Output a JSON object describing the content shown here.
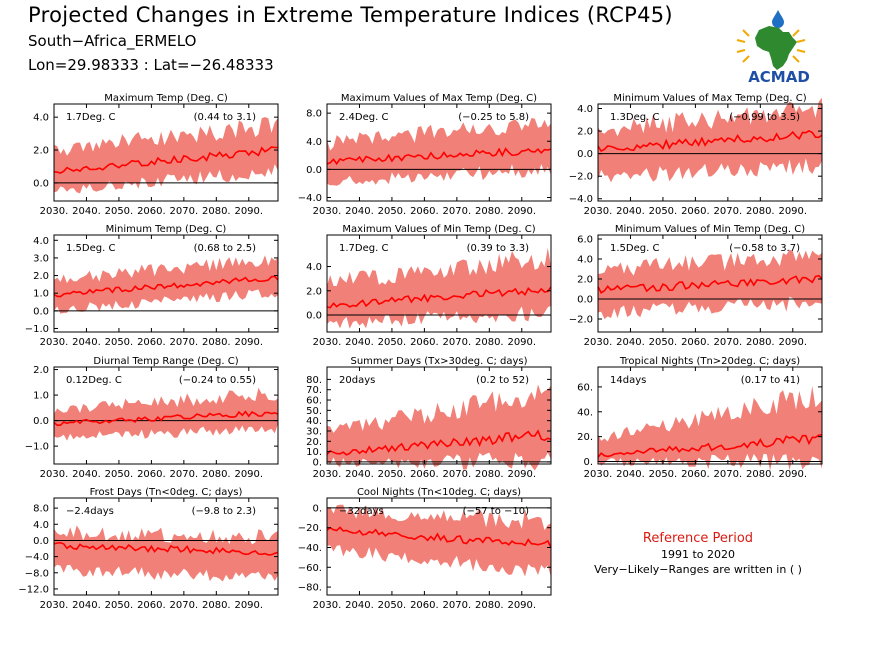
{
  "header": {
    "title": "Projected Changes in Extreme Temperature Indices (RCP45)",
    "location": "South−Africa_ERMELO",
    "coords": "Lon=29.98333 : Lat=−26.48333"
  },
  "logo": {
    "text": "ACMAD"
  },
  "reference": {
    "title": "Reference Period",
    "years": "1991 to 2020",
    "note": "Very−Likely−Ranges are written in ( )"
  },
  "colors": {
    "band": "#f08078",
    "line": "#ff0000",
    "zero_line": "#000000",
    "logo_text": "#1f4fa5"
  },
  "chart_data": [
    {
      "type": "area",
      "title": "Maximum Temp (Deg. C)",
      "change": "1.7Deg. C",
      "range": "(0.44 to 3.1)",
      "xlim": [
        2030,
        2099
      ],
      "xticks": [
        2030,
        2040,
        2050,
        2060,
        2070,
        2080,
        2090
      ],
      "xticklabels": [
        "2030.",
        "2040.",
        "2050.",
        "2060.",
        "2070.",
        "2080.",
        "2090."
      ],
      "ylim": [
        -1.1,
        4.8
      ],
      "yticks": [
        0,
        2,
        4
      ],
      "yticklabels": [
        "0.0",
        "2.0",
        "4.0"
      ],
      "mean_start": 0.7,
      "mean_end": 2.0,
      "low_start": -0.3,
      "low_end": 0.8,
      "high_start": 1.9,
      "high_end": 3.4
    },
    {
      "type": "area",
      "title": "Maximum Values of Max Temp (Deg. C)",
      "change": "2.4Deg. C",
      "range": "(−0.25 to 5.8)",
      "xlim": [
        2030,
        2099
      ],
      "xticks": [
        2030,
        2040,
        2050,
        2060,
        2070,
        2080,
        2090
      ],
      "xticklabels": [
        "2030.",
        "2040.",
        "2050.",
        "2060.",
        "2070.",
        "2080.",
        "2090."
      ],
      "ylim": [
        -4.5,
        9.3
      ],
      "yticks": [
        -4,
        0,
        4,
        8
      ],
      "yticklabels": [
        "−4.0",
        "0.0",
        "4.0",
        "8.0"
      ],
      "mean_start": 1.1,
      "mean_end": 2.8,
      "low_start": -1.5,
      "low_end": 0.2,
      "high_start": 3.5,
      "high_end": 6.5
    },
    {
      "type": "area",
      "title": "Minimum Values of Max Temp (Deg. C)",
      "change": "1.3Deg. C",
      "range": "(−0.99 to 3.5)",
      "xlim": [
        2030,
        2099
      ],
      "xticks": [
        2030,
        2040,
        2050,
        2060,
        2070,
        2080,
        2090
      ],
      "xticklabels": [
        "2030.",
        "2040.",
        "2050.",
        "2060.",
        "2070.",
        "2080.",
        "2090."
      ],
      "ylim": [
        -4.2,
        4.4
      ],
      "yticks": [
        -4,
        -2,
        0,
        2,
        4
      ],
      "yticklabels": [
        "−4.0",
        "−2.0",
        "0.0",
        "2.0",
        "4.0"
      ],
      "mean_start": 0.4,
      "mean_end": 1.8,
      "low_start": -2.0,
      "low_end": -0.8,
      "high_start": 2.0,
      "high_end": 3.8
    },
    {
      "type": "area",
      "title": "Minimum Temp (Deg. C)",
      "change": "1.5Deg. C",
      "range": "(0.68 to 2.5)",
      "xlim": [
        2030,
        2099
      ],
      "xticks": [
        2030,
        2040,
        2050,
        2060,
        2070,
        2080,
        2090
      ],
      "xticklabels": [
        "2030.",
        "2040.",
        "2050.",
        "2060.",
        "2070.",
        "2080.",
        "2090."
      ],
      "ylim": [
        -1.2,
        4.3
      ],
      "yticks": [
        -1,
        0,
        1,
        2,
        3,
        4
      ],
      "yticklabels": [
        "−1.0",
        "0.0",
        "1.0",
        "2.0",
        "3.0",
        "4.0"
      ],
      "mean_start": 0.9,
      "mean_end": 1.9,
      "low_start": 0.1,
      "low_end": 1.1,
      "high_start": 1.7,
      "high_end": 2.9
    },
    {
      "type": "area",
      "title": "Maximum Values of Min Temp (Deg. C)",
      "change": "1.7Deg. C",
      "range": "(0.39 to 3.3)",
      "xlim": [
        2030,
        2099
      ],
      "xticks": [
        2030,
        2040,
        2050,
        2060,
        2070,
        2080,
        2090
      ],
      "xticklabels": [
        "2030.",
        "2040.",
        "2050.",
        "2060.",
        "2070.",
        "2080.",
        "2090."
      ],
      "ylim": [
        -1.4,
        6.6
      ],
      "yticks": [
        0,
        2,
        4
      ],
      "yticklabels": [
        "0.0",
        "2.0",
        "4.0"
      ],
      "mean_start": 0.8,
      "mean_end": 2.1,
      "low_start": -0.6,
      "low_end": 0.4,
      "high_start": 2.5,
      "high_end": 4.6
    },
    {
      "type": "area",
      "title": "Minimum Values of Min Temp (Deg. C)",
      "change": "1.5Deg. C",
      "range": "(−0.58 to 3.7)",
      "xlim": [
        2030,
        2099
      ],
      "xticks": [
        2030,
        2040,
        2050,
        2060,
        2070,
        2080,
        2090
      ],
      "xticklabels": [
        "2030.",
        "2040.",
        "2050.",
        "2060.",
        "2070.",
        "2080.",
        "2090."
      ],
      "ylim": [
        -3.3,
        6.4
      ],
      "yticks": [
        -2,
        0,
        2,
        4,
        6
      ],
      "yticklabels": [
        "−2.0",
        "0.0",
        "2.0",
        "4.0",
        "6.0"
      ],
      "mean_start": 0.9,
      "mean_end": 2.0,
      "low_start": -1.2,
      "low_end": -0.2,
      "high_start": 2.8,
      "high_end": 4.2
    },
    {
      "type": "area",
      "title": "Diurnal Temp Range (Deg. C)",
      "change": "0.12Deg. C",
      "range": "(−0.24 to 0.55)",
      "xlim": [
        2030,
        2099
      ],
      "xticks": [
        2030,
        2040,
        2050,
        2060,
        2070,
        2080,
        2090
      ],
      "xticklabels": [
        "2030.",
        "2040.",
        "2050.",
        "2060.",
        "2070.",
        "2080.",
        "2090."
      ],
      "ylim": [
        -1.7,
        2.1
      ],
      "yticks": [
        -1,
        0,
        1,
        2
      ],
      "yticklabels": [
        "−1.0",
        "0.0",
        "1.0",
        "2.0"
      ],
      "mean_start": -0.1,
      "mean_end": 0.3,
      "low_start": -0.6,
      "low_end": -0.3,
      "high_start": 0.4,
      "high_end": 1.0
    },
    {
      "type": "area",
      "title": "Summer Days (Tx>30deg. C; days)",
      "change": "20days",
      "range": "(0.2 to 52)",
      "xlim": [
        2030,
        2099
      ],
      "xticks": [
        2030,
        2040,
        2050,
        2060,
        2070,
        2080,
        2090
      ],
      "xticklabels": [
        "2030.",
        "2040.",
        "2050.",
        "2060.",
        "2070.",
        "2080.",
        "2090."
      ],
      "ylim": [
        -2,
        92
      ],
      "yticks": [
        0,
        10,
        20,
        30,
        40,
        50,
        60,
        70,
        80
      ],
      "yticklabels": [
        "0.",
        "10.",
        "20.",
        "30.",
        "40.",
        "50.",
        "60.",
        "70.",
        "80."
      ],
      "mean_start": 8,
      "mean_end": 27,
      "low_start": 1,
      "low_end": 3,
      "high_start": 28,
      "high_end": 65
    },
    {
      "type": "area",
      "title": "Tropical Nights (Tn>20deg. C; days)",
      "change": "14days",
      "range": "(0.17 to 41)",
      "xlim": [
        2030,
        2099
      ],
      "xticks": [
        2030,
        2040,
        2050,
        2060,
        2070,
        2080,
        2090
      ],
      "xticklabels": [
        "2030.",
        "2040.",
        "2050.",
        "2060.",
        "2070.",
        "2080.",
        "2090."
      ],
      "ylim": [
        -2,
        76
      ],
      "yticks": [
        0,
        20,
        40,
        60
      ],
      "yticklabels": [
        "0.",
        "20.",
        "40.",
        "60."
      ],
      "mean_start": 5,
      "mean_end": 19,
      "low_start": 0,
      "low_end": 2,
      "high_start": 18,
      "high_end": 52
    },
    {
      "type": "area",
      "title": "Frost Days (Tn<0deg. C; days)",
      "change": "−2.4days",
      "range": "(−9.8 to 2.3)",
      "xlim": [
        2030,
        2099
      ],
      "xticks": [
        2030,
        2040,
        2050,
        2060,
        2070,
        2080,
        2090
      ],
      "xticklabels": [
        "2030.",
        "2040.",
        "2050.",
        "2060.",
        "2070.",
        "2080.",
        "2090."
      ],
      "ylim": [
        -13.5,
        10.5
      ],
      "yticks": [
        -12,
        -8,
        -4,
        0,
        4,
        8
      ],
      "yticklabels": [
        "−12.0",
        "−8.0",
        "−4.0",
        "0.0",
        "4.0",
        "8.0"
      ],
      "mean_start": -1.2,
      "mean_end": -3.0,
      "low_start": -7.0,
      "low_end": -9.0,
      "high_start": 1.5,
      "high_end": 0.5
    },
    {
      "type": "area",
      "title": "Cool Nights (Tn<10deg. C; days)",
      "change": "−32days",
      "range": "(−57 to −10)",
      "xlim": [
        2030,
        2099
      ],
      "xticks": [
        2030,
        2040,
        2050,
        2060,
        2070,
        2080,
        2090
      ],
      "xticklabels": [
        "2030.",
        "2040.",
        "2050.",
        "2060.",
        "2070.",
        "2080.",
        "2090."
      ],
      "ylim": [
        -88,
        10
      ],
      "yticks": [
        -80,
        -60,
        -40,
        -20,
        0
      ],
      "yticklabels": [
        "−80.",
        "−60.",
        "−40.",
        "−20.",
        "0."
      ],
      "mean_start": -22,
      "mean_end": -38,
      "low_start": -40,
      "low_end": -65,
      "high_start": -5,
      "high_end": -15
    }
  ]
}
